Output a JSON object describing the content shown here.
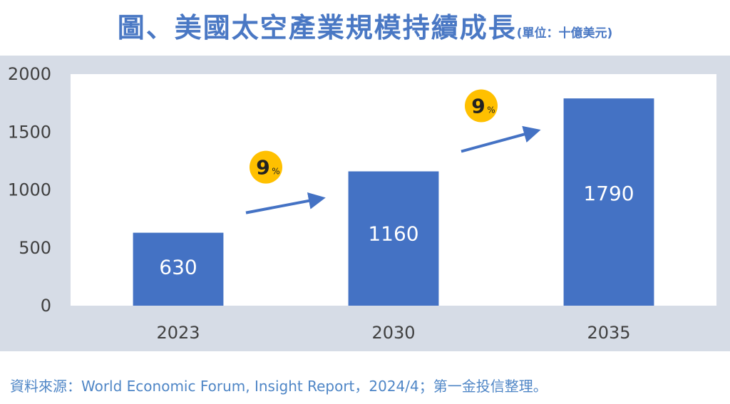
{
  "title": {
    "main": "圖、美國太空產業規模持續成長",
    "unit": "(單位：十億美元)"
  },
  "source": "資料來源：World Economic Forum, Insight Report，2024/4；第一金投信整理。",
  "colors": {
    "bar": "#4472c4",
    "arrow": "#4472c4",
    "badge": "#ffc000",
    "title": "#4a78c4",
    "panel": "#d6dce6"
  },
  "growth_badges": [
    {
      "value": "9",
      "unit": "%"
    },
    {
      "value": "9",
      "unit": "%"
    }
  ],
  "chart_data": {
    "type": "bar",
    "categories": [
      "2023",
      "2030",
      "2035"
    ],
    "values": [
      630,
      1160,
      1790
    ],
    "data_labels": [
      "630",
      "1160",
      "1790"
    ],
    "y_ticks": [
      "0",
      "500",
      "1000",
      "1500",
      "2000"
    ],
    "ylim": [
      0,
      2000
    ],
    "grid": false
  }
}
